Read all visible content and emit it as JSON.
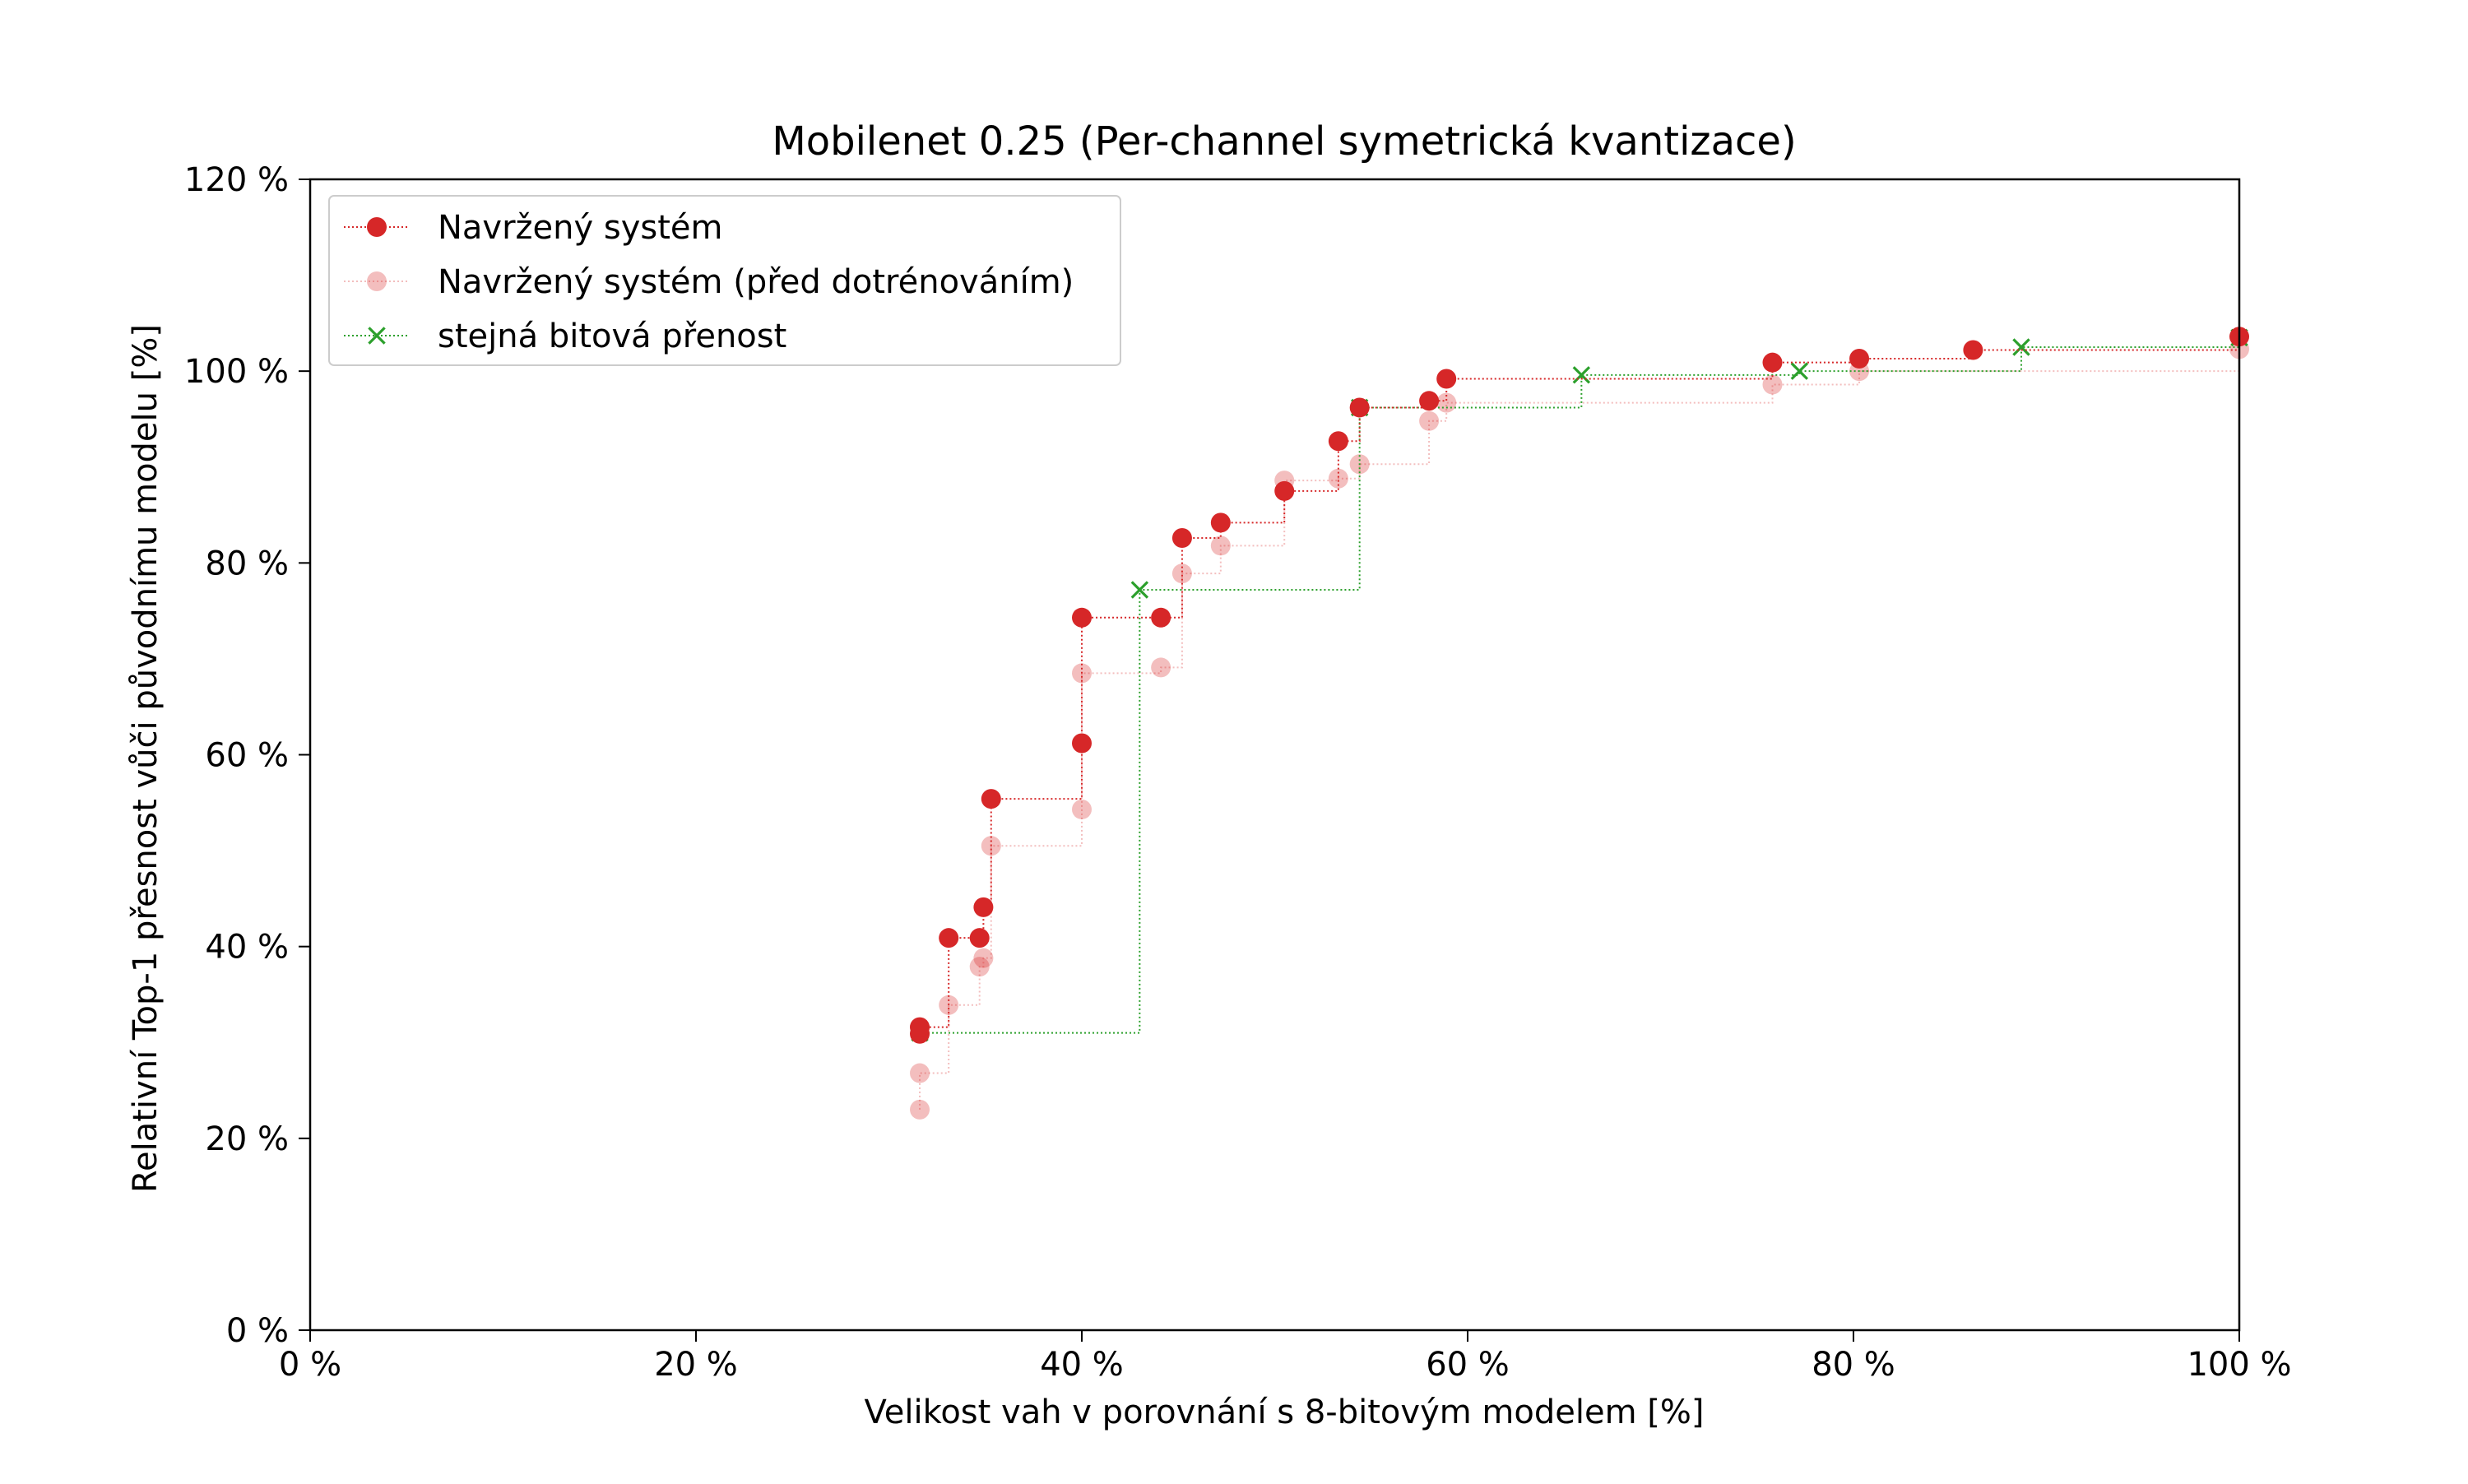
{
  "chart_data": {
    "type": "line",
    "title": "Mobilenet 0.25 (Per-channel symetrická kvantizace)",
    "xlabel": "Velikost vah v porovnání s 8-bitovým modelem [%]",
    "ylabel": "Relativní Top-1 přesnost vůči původnímu modelu [%]",
    "xlim": [
      0,
      100
    ],
    "ylim": [
      0,
      120
    ],
    "x_ticks": [
      0,
      20,
      40,
      60,
      80,
      100
    ],
    "y_ticks": [
      0,
      20,
      40,
      60,
      80,
      100,
      120
    ],
    "x_tick_labels": [
      "0 %",
      "20 %",
      "40 %",
      "60 %",
      "80 %",
      "100 %"
    ],
    "y_tick_labels": [
      "0 %",
      "20 %",
      "40 %",
      "60 %",
      "80 %",
      "100 %",
      "120 %"
    ],
    "grid": false,
    "legend_position": "top-left",
    "step_style": "post",
    "series": [
      {
        "name": "Navržený systém (před dotrénováním)",
        "color": "#d62728",
        "marker": "circle",
        "opacity": 0.3,
        "step_line": {
          "x": [
            31.6,
            31.6,
            33.1,
            34.7,
            34.9,
            35.3,
            40.0,
            40.0,
            44.1,
            45.2,
            47.2,
            50.5,
            53.3,
            54.4,
            58.0,
            58.9,
            75.8,
            80.3,
            100.0
          ],
          "y": [
            23.0,
            26.8,
            33.9,
            37.9,
            38.8,
            50.5,
            54.3,
            68.5,
            69.1,
            78.9,
            81.8,
            88.6,
            88.8,
            90.3,
            94.8,
            96.7,
            98.6,
            100.0,
            102.3
          ]
        },
        "points": {
          "x": [
            31.6,
            31.6,
            33.1,
            34.7,
            34.9,
            35.3,
            40.0,
            40.0,
            44.1,
            45.2,
            47.2,
            50.5,
            53.3,
            54.4,
            58.0,
            58.9,
            75.8,
            80.3,
            100.0
          ],
          "y": [
            23.0,
            26.8,
            33.9,
            37.9,
            38.8,
            50.5,
            54.3,
            68.5,
            69.1,
            78.9,
            81.8,
            88.6,
            88.8,
            90.3,
            94.8,
            96.7,
            98.6,
            100.0,
            102.3
          ]
        }
      },
      {
        "name": "stejná bitová přenost",
        "color": "#2ca02c",
        "marker": "x",
        "opacity": 1,
        "step_line": {
          "x": [
            31.6,
            43.0,
            54.4,
            65.9,
            77.2,
            88.7,
            100.0
          ],
          "y": [
            31.0,
            77.2,
            96.2,
            99.6,
            100.0,
            102.5,
            103.5
          ]
        },
        "points": {
          "x": [
            31.6,
            43.0,
            54.4,
            65.9,
            77.2,
            88.7,
            100.0
          ],
          "y": [
            31.0,
            77.2,
            96.2,
            99.6,
            100.0,
            102.5,
            103.5
          ]
        }
      },
      {
        "name": "Navržený systém",
        "color": "#d62728",
        "marker": "circle",
        "opacity": 1,
        "step_line": {
          "x": [
            31.6,
            31.6,
            33.1,
            34.7,
            34.9,
            35.3,
            40.0,
            40.0,
            44.1,
            45.2,
            47.2,
            50.5,
            53.3,
            54.4,
            58.0,
            58.9,
            75.8,
            80.3,
            86.2,
            100.0
          ],
          "y": [
            30.9,
            31.6,
            40.9,
            40.9,
            44.1,
            55.4,
            61.2,
            74.3,
            74.3,
            82.6,
            84.2,
            87.5,
            92.7,
            96.2,
            96.9,
            99.2,
            100.9,
            101.3,
            102.2,
            103.6
          ]
        },
        "points": {
          "x": [
            31.6,
            31.6,
            33.1,
            34.7,
            34.9,
            35.3,
            40.0,
            40.0,
            44.1,
            45.2,
            47.2,
            50.5,
            53.3,
            54.4,
            58.0,
            58.9,
            75.8,
            80.3,
            86.2,
            100.0
          ],
          "y": [
            30.9,
            31.6,
            40.9,
            40.9,
            44.1,
            55.4,
            61.2,
            74.3,
            74.3,
            82.6,
            84.2,
            87.5,
            92.7,
            96.2,
            96.9,
            99.2,
            100.9,
            101.3,
            102.2,
            103.6
          ]
        }
      }
    ],
    "legend_order": [
      "Navržený systém",
      "Navržený systém (před dotrénováním)",
      "stejná bitová přenost"
    ]
  }
}
